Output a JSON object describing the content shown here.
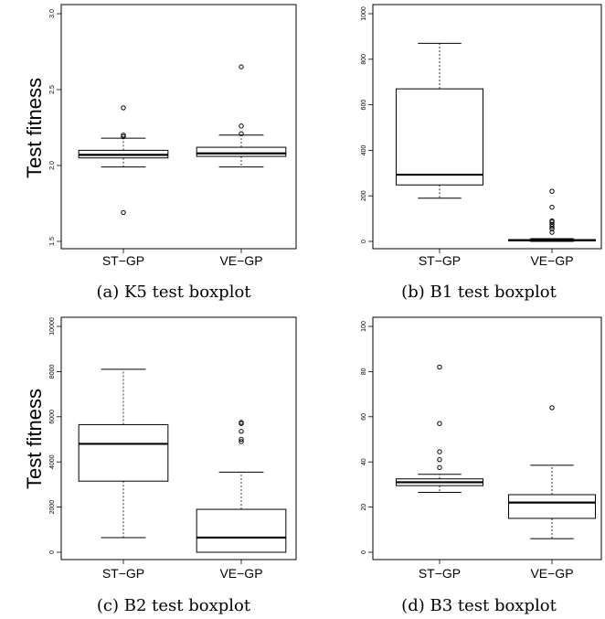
{
  "chart_data": [
    {
      "type": "box",
      "caption": "(a) K5 test boxplot",
      "ylabel": "Test fitness",
      "categories": [
        "ST−GP",
        "VE−GP"
      ],
      "ylim": [
        1.5,
        3.0
      ],
      "yticks": [
        1.5,
        2.0,
        2.5,
        3.0
      ],
      "ytick_labels": [
        "1.5",
        "2.0",
        "2.5",
        "3.0"
      ],
      "boxes": [
        {
          "whisker_low": 1.99,
          "q1": 2.05,
          "median": 2.07,
          "q3": 2.1,
          "whisker_high": 2.18,
          "outliers": [
            1.69,
            2.19,
            2.2,
            2.38
          ]
        },
        {
          "whisker_low": 1.99,
          "q1": 2.06,
          "median": 2.08,
          "q3": 2.12,
          "whisker_high": 2.2,
          "outliers": [
            2.21,
            2.26,
            2.65
          ]
        }
      ]
    },
    {
      "type": "box",
      "caption": "(b) B1 test boxplot",
      "ylabel": "",
      "categories": [
        "ST−GP",
        "VE−GP"
      ],
      "ylim": [
        0,
        1000
      ],
      "yticks": [
        0,
        200,
        400,
        600,
        800,
        1000
      ],
      "ytick_labels": [
        "0",
        "200",
        "400",
        "600",
        "800",
        "1000"
      ],
      "boxes": [
        {
          "whisker_low": 190,
          "q1": 248,
          "median": 293,
          "q3": 670,
          "whisker_high": 870,
          "outliers": []
        },
        {
          "whisker_low": 0,
          "q1": 2,
          "median": 5,
          "q3": 8,
          "whisker_high": 12,
          "outliers": [
            40,
            55,
            65,
            75,
            85,
            90,
            150,
            220
          ]
        }
      ]
    },
    {
      "type": "box",
      "caption": "(c) B2 test boxplot",
      "ylabel": "Test fitness",
      "categories": [
        "ST−GP",
        "VE−GP"
      ],
      "ylim": [
        0,
        10000
      ],
      "yticks": [
        0,
        2000,
        4000,
        6000,
        8000,
        10000
      ],
      "ytick_labels": [
        "0",
        "2000",
        "4000",
        "6000",
        "8000",
        "10000"
      ],
      "boxes": [
        {
          "whisker_low": 650,
          "q1": 3150,
          "median": 4800,
          "q3": 5650,
          "whisker_high": 8100,
          "outliers": []
        },
        {
          "whisker_low": 0,
          "q1": 0,
          "median": 650,
          "q3": 1900,
          "whisker_high": 3550,
          "outliers": [
            4900,
            5000,
            5350,
            5700,
            5750
          ]
        }
      ]
    },
    {
      "type": "box",
      "caption": "(d) B3 test boxplot",
      "ylabel": "",
      "categories": [
        "ST−GP",
        "VE−GP"
      ],
      "ylim": [
        0,
        100
      ],
      "yticks": [
        0,
        20,
        40,
        60,
        80,
        100
      ],
      "ytick_labels": [
        "0",
        "20",
        "40",
        "60",
        "80",
        "100"
      ],
      "boxes": [
        {
          "whisker_low": 26.5,
          "q1": 29.5,
          "median": 31,
          "q3": 32.5,
          "whisker_high": 34.5,
          "outliers": [
            37.5,
            41,
            44.5,
            57,
            82
          ]
        },
        {
          "whisker_low": 6,
          "q1": 15,
          "median": 22,
          "q3": 25.5,
          "whisker_high": 38.5,
          "outliers": [
            64
          ]
        }
      ]
    }
  ]
}
